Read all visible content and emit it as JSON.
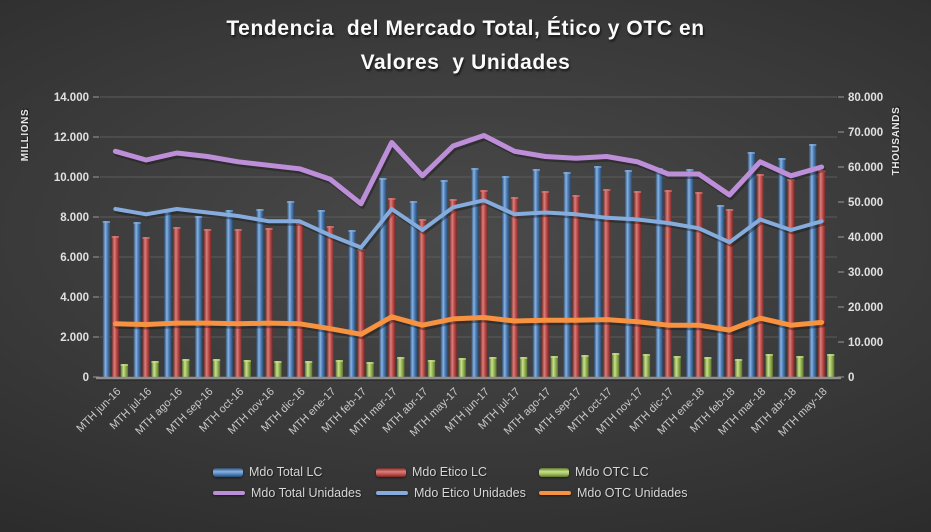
{
  "title": {
    "line1": "Tendencia  del Mercado Total, Ético y OTC en",
    "line2": "Valores  y Unidades"
  },
  "chart_data": {
    "type": "bar+line combo",
    "grid": true,
    "legend_position": "bottom",
    "categories": [
      "MTH jun-16",
      "MTH jul-16",
      "MTH ago-16",
      "MTH sep-16",
      "MTH oct-16",
      "MTH nov-16",
      "MTH dic-16",
      "MTH ene-17",
      "MTH feb-17",
      "MTH mar-17",
      "MTH abr-17",
      "MTH may-17",
      "MTH jun-17",
      "MTH jul-17",
      "MTH ago-17",
      "MTH sep-17",
      "MTH oct-17",
      "MTH nov-17",
      "MTH dic-17",
      "MTH ene-18",
      "MTH feb-18",
      "MTH mar-18",
      "MTH abr-18",
      "MTH may-18"
    ],
    "left_axis": {
      "label": "MILLIONS",
      "min": 0,
      "max": 14000,
      "step": 2000,
      "tick_labels": [
        "0",
        "2.000",
        "4.000",
        "6.000",
        "8.000",
        "10.000",
        "12.000",
        "14.000"
      ]
    },
    "right_axis": {
      "label": "THOUSANDS",
      "min": 0,
      "max": 80000,
      "step": 10000,
      "tick_labels": [
        "0",
        "10.000",
        "20.000",
        "30.000",
        "40.000",
        "50.000",
        "60.000",
        "70.000",
        "80.000"
      ]
    },
    "bar_series": [
      {
        "name": "Mdo Total LC",
        "axis": "left",
        "base": "#4f81bd",
        "light": "#8ab2e0",
        "dark": "#2b4a6b",
        "values": [
          7800,
          7750,
          8400,
          8050,
          8350,
          8400,
          8800,
          8350,
          7350,
          9950,
          8800,
          9850,
          10450,
          10050,
          10400,
          10250,
          10550,
          10350,
          10450,
          10400,
          8600,
          11250,
          10950,
          11650
        ]
      },
      {
        "name": "Mdo Etico LC",
        "axis": "left",
        "base": "#c0504d",
        "light": "#d97f7c",
        "dark": "#732927",
        "values": [
          7050,
          7000,
          7500,
          7400,
          7400,
          7450,
          7700,
          7550,
          6400,
          8950,
          7900,
          8900,
          9350,
          9000,
          9300,
          9100,
          9400,
          9300,
          9350,
          9250,
          8400,
          10150,
          9900,
          10350
        ]
      },
      {
        "name": "Mdo OTC  LC",
        "axis": "left",
        "base": "#9bbb59",
        "light": "#c9e08d",
        "dark": "#5d742e",
        "values": [
          650,
          800,
          900,
          900,
          850,
          800,
          800,
          850,
          750,
          1000,
          850,
          950,
          1000,
          1000,
          1050,
          1100,
          1200,
          1150,
          1050,
          1000,
          900,
          1150,
          1050,
          1150
        ]
      }
    ],
    "line_series": [
      {
        "name": "Mdo Total Unidades",
        "axis": "right",
        "color": "#bd8fd9",
        "width": 5,
        "values": [
          64500,
          62000,
          64000,
          63000,
          61500,
          60500,
          59500,
          56500,
          49500,
          67000,
          57500,
          66000,
          69000,
          64500,
          63000,
          62500,
          63000,
          61500,
          58000,
          58000,
          52000,
          61500,
          57500,
          60000
        ]
      },
      {
        "name": "Mdo Etico Unidades",
        "axis": "right",
        "color": "#85acdc",
        "width": 4,
        "values": [
          48000,
          46500,
          48000,
          47000,
          46000,
          44500,
          44500,
          40500,
          37000,
          48000,
          42000,
          48500,
          50500,
          46500,
          47000,
          46500,
          45500,
          45000,
          44000,
          42500,
          38500,
          45000,
          42000,
          44500
        ]
      },
      {
        "name": "Mdo OTC Unidades",
        "axis": "right",
        "color": "#f79240",
        "width": 5,
        "values": [
          15200,
          15000,
          15400,
          15400,
          15200,
          15400,
          15200,
          13800,
          12200,
          17200,
          14800,
          16600,
          17000,
          16000,
          16200,
          16200,
          16400,
          15800,
          14800,
          14800,
          13400,
          16800,
          14800,
          15600
        ]
      }
    ]
  }
}
